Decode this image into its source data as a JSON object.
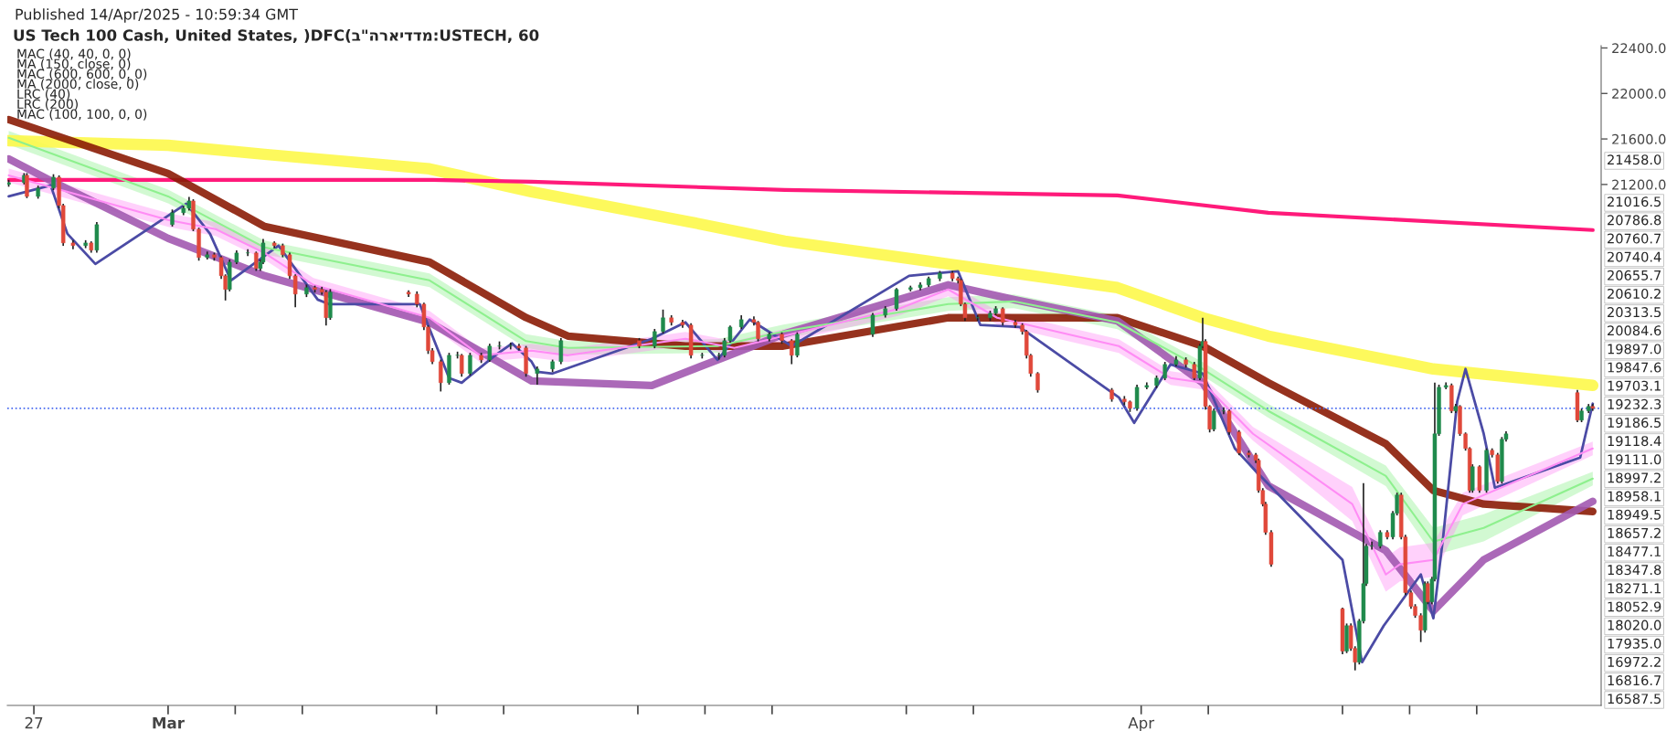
{
  "chart_data": {
    "type": "candlestick",
    "title": "US Tech 100 Cash, United States, )DFC(ב\"הראידדמ:USTECH, 60",
    "annotations": [
      "Published 14/Apr/2025 - 10:59:34 GMT",
      "MAC (40, 40, 0, 0)",
      "MA (150, close, 0)",
      "MAC (600, 600, 0, 0)",
      "MA (2000, close, 0)",
      "LRC (40)",
      "LRC (200)",
      "MAC (100, 100, 0, 0)",
      "21458.0",
      "21016.5",
      "20786.8",
      "20760.7",
      "20740.4",
      "20655.7",
      "20610.2",
      "20313.5",
      "20084.6",
      "19897.0",
      "19847.6",
      "19703.1",
      "19232.3",
      "19186.5",
      "19118.4",
      "19111.0",
      "18997.2",
      "18958.1",
      "18949.5",
      "18657.2",
      "18477.1",
      "18347.8",
      "18271.1",
      "18052.9",
      "18020.0",
      "17935.0",
      "16972.2",
      "16816.7",
      "16587.5"
    ],
    "x": [
      "2025-02-26T06:00",
      "2025-02-26T17:00",
      "2025-02-26T19:00",
      "2025-02-27T03:00",
      "2025-02-27T14:00",
      "2025-02-27T18:00",
      "2025-02-27T21:00",
      "2025-02-28T04:00",
      "2025-02-28T13:00",
      "2025-02-28T17:00",
      "2025-02-28T21:00",
      "2025-03-03T03:00",
      "2025-03-03T11:00",
      "2025-03-03T15:00",
      "2025-03-03T18:00",
      "2025-03-03T22:00",
      "2025-03-04T04:00",
      "2025-03-04T09:00",
      "2025-03-04T14:00",
      "2025-03-04T17:00",
      "2025-03-04T20:00",
      "2025-03-05T01:00",
      "2025-03-05T09:00",
      "2025-03-05T15:00",
      "2025-03-05T18:00",
      "2025-03-05T20:00",
      "2025-03-06T04:00",
      "2025-03-06T10:00",
      "2025-03-06T15:00",
      "2025-03-06T19:00",
      "2025-03-07T03:00",
      "2025-03-07T09:00",
      "2025-03-07T14:00",
      "2025-03-07T17:00",
      "2025-03-07T20:00",
      "2025-03-10T04:00",
      "2025-03-10T10:00",
      "2025-03-10T15:00",
      "2025-03-10T18:00",
      "2025-03-10T21:00",
      "2025-03-11T03:00",
      "2025-03-11T09:00",
      "2025-03-11T15:00",
      "2025-03-11T18:00",
      "2025-03-12T00:00",
      "2025-03-12T08:00",
      "2025-03-12T14:00",
      "2025-03-12T21:00",
      "2025-03-13T05:00",
      "2025-03-13T11:00",
      "2025-03-13T16:00",
      "2025-03-14T00:00",
      "2025-03-14T11:00",
      "2025-03-14T17:00",
      "2025-03-17T01:00",
      "2025-03-17T12:00",
      "2025-03-17T18:00",
      "2025-03-18T00:00",
      "2025-03-18T08:00",
      "2025-03-18T14:00",
      "2025-03-18T22:00",
      "2025-03-19T10:00",
      "2025-03-19T14:00",
      "2025-03-19T18:00",
      "2025-03-20T02:00",
      "2025-03-20T11:00",
      "2025-03-20T14:00",
      "2025-03-20T22:00",
      "2025-03-21T07:00",
      "2025-03-21T14:00",
      "2025-03-21T18:00",
      "2025-03-24T00:00",
      "2025-03-24T09:00",
      "2025-03-24T17:00",
      "2025-03-25T03:00",
      "2025-03-25T10:00",
      "2025-03-25T16:00",
      "2025-03-26T00:00",
      "2025-03-26T09:00",
      "2025-03-26T13:00",
      "2025-03-26T15:00",
      "2025-03-26T18:00",
      "2025-03-27T03:00",
      "2025-03-27T12:00",
      "2025-03-27T16:00",
      "2025-03-27T21:00",
      "2025-03-28T06:00",
      "2025-03-28T11:00",
      "2025-03-28T14:00",
      "2025-03-28T17:00",
      "2025-03-28T22:00",
      "2025-03-31T03:00",
      "2025-03-31T12:00",
      "2025-03-31T16:00",
      "2025-03-31T21:00",
      "2025-04-01T04:00",
      "2025-04-01T11:00",
      "2025-04-01T17:00",
      "2025-04-02T01:00",
      "2025-04-02T08:00",
      "2025-04-02T14:00",
      "2025-04-02T18:00",
      "2025-04-02T20:00",
      "2025-04-02T22:00",
      "2025-04-03T01:00",
      "2025-04-03T04:00",
      "2025-04-03T11:00",
      "2025-04-03T15:00",
      "2025-04-03T22:00",
      "2025-04-04T05:00",
      "2025-04-04T10:00",
      "2025-04-04T12:00",
      "2025-04-04T15:00",
      "2025-04-04T17:00",
      "2025-04-04T21:00",
      "2025-04-07T00:00",
      "2025-04-07T03:00",
      "2025-04-07T06:00",
      "2025-04-07T09:00",
      "2025-04-07T12:00",
      "2025-04-07T15:00",
      "2025-04-07T17:00",
      "2025-04-07T21:00",
      "2025-04-08T03:00",
      "2025-04-08T08:00",
      "2025-04-08T12:00",
      "2025-04-08T15:00",
      "2025-04-08T18:00",
      "2025-04-08T21:00",
      "2025-04-09T01:00",
      "2025-04-09T04:00",
      "2025-04-09T08:00",
      "2025-04-09T11:00",
      "2025-04-09T13:00",
      "2025-04-09T16:00",
      "2025-04-09T18:00",
      "2025-04-09T21:00",
      "2025-04-10T02:00",
      "2025-04-10T06:00",
      "2025-04-10T09:00",
      "2025-04-10T12:00",
      "2025-04-10T16:00",
      "2025-04-10T19:00",
      "2025-04-10T21:00",
      "2025-04-11T02:00",
      "2025-04-11T07:00",
      "2025-04-11T11:00",
      "2025-04-11T15:00",
      "2025-04-11T18:00",
      "2025-04-11T21:00",
      "2025-04-14T00:00",
      "2025-04-14T03:00",
      "2025-04-14T08:00",
      "2025-04-14T11:00"
    ],
    "ohlc": [
      [
        21200,
        21240,
        21180,
        21216
      ],
      [
        21216,
        21300,
        21200,
        21280
      ],
      [
        21280,
        21300,
        21080,
        21095
      ],
      [
        21095,
        21190,
        21075,
        21168
      ],
      [
        21168,
        21290,
        21150,
        21264
      ],
      [
        21264,
        21280,
        20990,
        21015
      ],
      [
        21015,
        21030,
        20660,
        20686
      ],
      [
        20686,
        20710,
        20630,
        20662
      ],
      [
        20662,
        20710,
        20640,
        20686
      ],
      [
        20686,
        20700,
        20600,
        20622
      ],
      [
        20622,
        20870,
        20600,
        20847
      ],
      [
        20847,
        20980,
        20830,
        20951
      ],
      [
        20951,
        21010,
        20930,
        20991
      ],
      [
        20991,
        21090,
        20970,
        21055
      ],
      [
        21055,
        21070,
        20790,
        20807
      ],
      [
        20807,
        20820,
        20530,
        20558
      ],
      [
        20558,
        20610,
        20540,
        20582
      ],
      [
        20582,
        20600,
        20530,
        20558
      ],
      [
        20558,
        20570,
        20370,
        20397
      ],
      [
        20397,
        20410,
        20180,
        20277
      ],
      [
        20277,
        20540,
        20260,
        20517
      ],
      [
        20517,
        20620,
        20500,
        20598
      ],
      [
        20598,
        20630,
        20570,
        20598
      ],
      [
        20598,
        20610,
        20440,
        20461
      ],
      [
        20461,
        20540,
        20440,
        20517
      ],
      [
        20517,
        20720,
        20500,
        20686
      ],
      [
        20686,
        20700,
        20640,
        20662
      ],
      [
        20662,
        20680,
        20560,
        20582
      ],
      [
        20582,
        20600,
        20370,
        20397
      ],
      [
        20397,
        20410,
        20120,
        20236
      ],
      [
        20236,
        20320,
        20210,
        20293
      ],
      [
        20293,
        20310,
        20250,
        20277
      ],
      [
        20277,
        20300,
        20230,
        20253
      ],
      [
        20253,
        20270,
        19960,
        20028
      ],
      [
        20028,
        20280,
        20010,
        20253
      ],
      [
        20253,
        20270,
        20210,
        20236
      ],
      [
        20236,
        20260,
        20120,
        20148
      ],
      [
        20148,
        20160,
        19920,
        19947
      ],
      [
        19947,
        19960,
        19710,
        19739
      ],
      [
        19739,
        19760,
        19620,
        19642
      ],
      [
        19642,
        19660,
        19380,
        19457
      ],
      [
        19457,
        19720,
        19440,
        19698
      ],
      [
        19698,
        19730,
        19670,
        19698
      ],
      [
        19698,
        19710,
        19510,
        19538
      ],
      [
        19538,
        19720,
        19520,
        19698
      ],
      [
        19698,
        19720,
        19630,
        19658
      ],
      [
        19658,
        19800,
        19640,
        19779
      ],
      [
        19779,
        19820,
        19750,
        19779
      ],
      [
        19779,
        19810,
        19750,
        19779
      ],
      [
        19779,
        19800,
        19740,
        19763
      ],
      [
        19763,
        19780,
        19510,
        19538
      ],
      [
        19538,
        19600,
        19440,
        19578
      ],
      [
        19578,
        19660,
        19550,
        19642
      ],
      [
        19642,
        19850,
        19620,
        19827
      ],
      [
        19827,
        19850,
        19760,
        19779
      ],
      [
        19779,
        19930,
        19760,
        19907
      ],
      [
        19907,
        20100,
        19890,
        20028
      ],
      [
        20028,
        20050,
        19960,
        19988
      ],
      [
        19988,
        20010,
        19940,
        19964
      ],
      [
        19964,
        19980,
        19670,
        19698
      ],
      [
        19698,
        19720,
        19670,
        19698
      ],
      [
        19698,
        19720,
        19660,
        19698
      ],
      [
        19698,
        19850,
        19680,
        19827
      ],
      [
        19827,
        19960,
        19810,
        19947
      ],
      [
        19947,
        20050,
        19930,
        20012
      ],
      [
        20012,
        20040,
        19960,
        19988
      ],
      [
        19988,
        20000,
        19820,
        19843
      ],
      [
        19843,
        19900,
        19820,
        19883
      ],
      [
        19883,
        19900,
        19800,
        19827
      ],
      [
        19827,
        19840,
        19620,
        19698
      ],
      [
        19698,
        19900,
        19680,
        19883
      ],
      [
        19883,
        20070,
        19860,
        20052
      ],
      [
        20052,
        20130,
        20030,
        20108
      ],
      [
        20108,
        20290,
        20090,
        20277
      ],
      [
        20277,
        20310,
        20260,
        20293
      ],
      [
        20293,
        20340,
        20270,
        20317
      ],
      [
        20317,
        20390,
        20300,
        20373
      ],
      [
        20373,
        20440,
        20350,
        20421
      ],
      [
        20421,
        20440,
        20350,
        20373
      ],
      [
        20373,
        20390,
        20330,
        20357
      ],
      [
        20357,
        20370,
        20130,
        20148
      ],
      [
        20148,
        20160,
        20000,
        20028
      ],
      [
        20028,
        20050,
        20000,
        20028
      ],
      [
        20028,
        20090,
        20000,
        20068
      ],
      [
        20068,
        20130,
        20050,
        20108
      ],
      [
        20108,
        20120,
        19960,
        19988
      ],
      [
        19988,
        20010,
        19940,
        19964
      ],
      [
        19964,
        19980,
        19880,
        19907
      ],
      [
        19907,
        19920,
        19670,
        19698
      ],
      [
        19698,
        19710,
        19510,
        19538
      ],
      [
        19538,
        19550,
        19370,
        19393
      ],
      [
        19393,
        19410,
        19290,
        19313
      ],
      [
        19313,
        19340,
        19260,
        19289
      ],
      [
        19289,
        19300,
        19200,
        19232
      ],
      [
        19232,
        19440,
        19210,
        19417
      ],
      [
        19417,
        19460,
        19400,
        19433
      ],
      [
        19433,
        19520,
        19410,
        19498
      ],
      [
        19498,
        19640,
        19480,
        19618
      ],
      [
        19618,
        19690,
        19600,
        19658
      ],
      [
        19658,
        19680,
        19590,
        19618
      ],
      [
        19618,
        19640,
        19480,
        19498
      ],
      [
        19498,
        19800,
        19480,
        19779
      ],
      [
        19779,
        20028,
        19760,
        19820
      ],
      [
        19820,
        19840,
        19220,
        19249
      ],
      [
        19249,
        19260,
        19020,
        19048
      ],
      [
        19048,
        19230,
        19030,
        19209
      ],
      [
        19209,
        19240,
        19180,
        19209
      ],
      [
        19209,
        19220,
        19000,
        19024
      ],
      [
        19024,
        19040,
        18820,
        18839
      ],
      [
        18839,
        18860,
        18800,
        18823
      ],
      [
        18823,
        18840,
        18750,
        18775
      ],
      [
        18775,
        18790,
        18490,
        18510
      ],
      [
        18510,
        18530,
        18370,
        18390
      ],
      [
        18390,
        18410,
        18120,
        18141
      ],
      [
        18141,
        18160,
        17840,
        17860
      ],
      [
        17470,
        17480,
        17070,
        17097
      ],
      [
        17097,
        17340,
        17080,
        17321
      ],
      [
        17321,
        17340,
        17100,
        17121
      ],
      [
        17121,
        17140,
        16928,
        17000
      ],
      [
        17000,
        17380,
        16980,
        17362
      ],
      [
        17362,
        18574,
        17340,
        17691
      ],
      [
        17691,
        18040,
        17670,
        18020
      ],
      [
        18020,
        18060,
        17990,
        18020
      ],
      [
        18020,
        18160,
        18000,
        18141
      ],
      [
        18141,
        18160,
        18080,
        18101
      ],
      [
        18101,
        18330,
        18080,
        18309
      ],
      [
        18309,
        18490,
        18290,
        18470
      ],
      [
        18470,
        18490,
        18080,
        18101
      ],
      [
        18101,
        18120,
        17590,
        17611
      ],
      [
        17611,
        17630,
        17470,
        17490
      ],
      [
        17490,
        17510,
        17390,
        17410
      ],
      [
        17410,
        17430,
        17177,
        17281
      ],
      [
        17281,
        17710,
        17260,
        17691
      ],
      [
        17691,
        17710,
        17510,
        17530
      ],
      [
        17530,
        17750,
        17510,
        17731
      ],
      [
        17731,
        19457,
        17710,
        19008
      ],
      [
        19008,
        19440,
        18990,
        19417
      ],
      [
        19417,
        19460,
        19400,
        19433
      ],
      [
        19433,
        19450,
        19190,
        19209
      ],
      [
        19209,
        19270,
        19190,
        19249
      ],
      [
        19249,
        19260,
        18990,
        19008
      ],
      [
        19008,
        19020,
        18860,
        18879
      ],
      [
        18879,
        18890,
        18490,
        18510
      ],
      [
        18510,
        18740,
        18490,
        18719
      ],
      [
        18719,
        18730,
        18490,
        18510
      ],
      [
        18510,
        18880,
        18490,
        18863
      ],
      [
        18863,
        18880,
        18800,
        18823
      ],
      [
        18823,
        18840,
        18570,
        18590
      ],
      [
        18590,
        18980,
        18570,
        18960
      ],
      [
        18960,
        19030,
        18940,
        19008
      ],
      [
        19370,
        19393,
        19110,
        19128
      ],
      [
        19128,
        19230,
        19110,
        19209
      ],
      [
        19209,
        19270,
        19190,
        19249
      ],
      [
        19249,
        19270,
        19210,
        19232
      ]
    ],
    "series": [
      {
        "type": "line",
        "color": "#fdf84a",
        "x": [
          "2025-02-26T06:00",
          "2025-03-03T00:00",
          "2025-03-05T21:00",
          "2025-03-10T19:00",
          "2025-03-13T20:00",
          "2025-03-18T13:00",
          "2025-03-21T09:00",
          "2025-03-26T06:00",
          "2025-03-31T07:00",
          "2025-04-02T20:00",
          "2025-04-04T19:00",
          "2025-04-09T17:00",
          "2025-04-14T11:00"
        ],
        "values": [
          21585,
          21545,
          21465,
          21337,
          21136,
          20871,
          20702,
          20501,
          20293,
          20028,
          19867,
          19578,
          19433
        ]
      },
      {
        "type": "line",
        "color": "#ff1a7a",
        "x": [
          "2025-02-26T06:00",
          "2025-03-10T21:00",
          "2025-03-13T20:00",
          "2025-03-21T09:00",
          "2025-03-31T07:00",
          "2025-04-04T19:00",
          "2025-04-14T11:00"
        ],
        "values": [
          21240,
          21240,
          21224,
          21152,
          21104,
          20951,
          20799
        ]
      },
      {
        "type": "line",
        "color": "#8ef08e",
        "x": [
          "2025-02-26T06:00",
          "2025-03-03T00:00",
          "2025-03-05T21:00",
          "2025-03-10T19:00",
          "2025-03-13T16:00",
          "2025-03-14T22:00",
          "2025-03-19T09:00",
          "2025-03-21T08:00",
          "2025-03-26T06:00",
          "2025-03-28T05:00",
          "2025-03-31T07:00",
          "2025-04-02T20:00",
          "2025-04-04T19:00",
          "2025-04-08T07:00",
          "2025-04-09T17:00",
          "2025-04-11T05:00",
          "2025-04-14T11:00"
        ],
        "values": [
          21610,
          21095,
          20646,
          20357,
          19823,
          19763,
          19779,
          19907,
          20148,
          20172,
          19988,
          19578,
          19209,
          18638,
          18060,
          18181,
          18614
        ],
        "lower": [
          21550,
          21035,
          20586,
          20297,
          19763,
          19703,
          19719,
          19847,
          20088,
          20112,
          19928,
          19518,
          19149,
          18548,
          17940,
          18061,
          18554
        ],
        "upper": [
          21670,
          21155,
          20706,
          20417,
          19883,
          19823,
          19839,
          19967,
          20208,
          20232,
          20048,
          19638,
          19269,
          18728,
          18180,
          18301,
          18674
        ]
      },
      {
        "type": "line",
        "color": "#ff8cf5",
        "x": [
          "2025-02-26T06:00",
          "2025-02-27T12:00",
          "2025-03-03T00:00",
          "2025-03-04T10:00",
          "2025-03-05T21:00",
          "2025-03-07T08:00",
          "2025-03-10T19:00",
          "2025-03-12T07:00",
          "2025-03-13T20:00",
          "2025-03-14T22:00",
          "2025-03-18T10:00",
          "2025-03-19T21:00",
          "2025-03-21T08:00",
          "2025-03-24T19:00",
          "2025-03-26T06:00",
          "2025-03-27T17:00",
          "2025-03-31T08:00",
          "2025-04-01T21:00",
          "2025-04-02T20:00",
          "2025-04-04T08:00",
          "2025-04-07T07:00",
          "2025-04-08T07:00",
          "2025-04-08T17:00",
          "2025-04-09T17:00",
          "2025-04-10T14:00",
          "2025-04-14T11:00"
        ],
        "values": [
          21280,
          21176,
          20887,
          20807,
          20598,
          20317,
          20028,
          19698,
          19739,
          19698,
          19843,
          19763,
          19867,
          20108,
          20277,
          20028,
          19779,
          19498,
          19457,
          19008,
          18390,
          17771,
          17860,
          17900,
          18390,
          18879
        ],
        "lower": [
          21220,
          21116,
          20827,
          20747,
          20538,
          20257,
          19968,
          19638,
          19679,
          19638,
          19783,
          19703,
          19807,
          20048,
          20217,
          19968,
          19719,
          19438,
          19397,
          18948,
          18240,
          17621,
          17710,
          17750,
          18290,
          18819
        ],
        "upper": [
          21340,
          21236,
          20947,
          20867,
          20658,
          20377,
          20088,
          19758,
          19799,
          19758,
          19903,
          19823,
          19927,
          20168,
          20337,
          20088,
          19839,
          19558,
          19517,
          19068,
          18540,
          17921,
          18010,
          18050,
          18490,
          18939
        ]
      },
      {
        "type": "line",
        "color": "#8b1c06",
        "x": [
          "2025-02-26T06:00",
          "2025-03-03T00:00",
          "2025-03-05T21:00",
          "2025-03-10T19:00",
          "2025-03-13T16:00",
          "2025-03-14T22:00",
          "2025-03-18T10:00",
          "2025-03-21T08:00",
          "2025-03-26T06:00",
          "2025-03-31T07:00",
          "2025-04-02T20:00",
          "2025-04-04T19:00",
          "2025-04-08T07:00",
          "2025-04-09T17:00",
          "2025-04-11T05:00",
          "2025-04-14T11:00"
        ],
        "values": [
          21770,
          21296,
          20831,
          20517,
          20030,
          19867,
          19779,
          19779,
          20028,
          20028,
          19779,
          19457,
          18920,
          18510,
          18390,
          18325
        ]
      },
      {
        "type": "line",
        "color": "#a259b0",
        "x": [
          "2025-02-26T06:00",
          "2025-02-27T11:00",
          "2025-03-03T00:00",
          "2025-03-05T21:00",
          "2025-03-10T19:00",
          "2025-03-13T20:00",
          "2025-03-17T10:00",
          "2025-03-19T09:00",
          "2025-03-21T08:00",
          "2025-03-26T06:00",
          "2025-03-28T05:00",
          "2025-03-31T07:00",
          "2025-04-02T20:00",
          "2025-04-04T19:00",
          "2025-04-08T07:00",
          "2025-04-09T17:00",
          "2025-04-11T05:00",
          "2025-04-14T11:00"
        ],
        "values": [
          21425,
          21240,
          20726,
          20397,
          19988,
          19473,
          19433,
          19658,
          19883,
          20317,
          20188,
          20000,
          19457,
          18550,
          17980,
          17450,
          17900,
          18414
        ]
      },
      {
        "type": "line",
        "color": "#4b4ba5",
        "x": [
          "2025-02-26T06:00",
          "2025-02-27T12:00",
          "2025-02-28T00:00",
          "2025-02-28T20:00",
          "2025-03-03T13:00",
          "2025-03-04T06:00",
          "2025-03-04T21:00",
          "2025-03-06T07:00",
          "2025-03-07T11:00",
          "2025-03-07T19:00",
          "2025-03-10T12:00",
          "2025-03-11T09:00",
          "2025-03-11T18:00",
          "2025-03-12T18:00",
          "2025-03-13T06:00",
          "2025-03-13T20:00",
          "2025-03-14T00:00",
          "2025-03-14T11:00",
          "2025-03-17T10:00",
          "2025-03-18T10:00",
          "2025-03-19T09:00",
          "2025-03-20T08:00",
          "2025-03-21T14:00",
          "2025-03-25T02:00",
          "2025-03-26T13:00",
          "2025-03-27T05:00",
          "2025-03-28T09:00",
          "2025-03-31T08:00",
          "2025-03-31T19:00",
          "2025-04-01T21:00",
          "2025-04-02T20:00",
          "2025-04-03T19:00",
          "2025-04-04T10:00",
          "2025-04-07T00:00",
          "2025-04-07T14:00",
          "2025-04-08T05:30",
          "2025-04-09T08:00",
          "2025-04-09T17:00",
          "2025-04-10T00:00",
          "2025-04-10T10:00",
          "2025-04-10T16:00",
          "2025-04-11T05:00",
          "2025-04-11T13:00",
          "2025-04-14T02:00",
          "2025-04-14T11:00"
        ],
        "values": [
          21095,
          21192,
          20766,
          20501,
          21031,
          20766,
          20357,
          20662,
          20188,
          20148,
          20148,
          19498,
          19457,
          19698,
          19803,
          19642,
          19554,
          19538,
          19843,
          19988,
          19658,
          20012,
          19779,
          20397,
          20437,
          19964,
          19947,
          19329,
          19104,
          19618,
          19538,
          18879,
          18679,
          17900,
          17000,
          17321,
          17771,
          17386,
          18101,
          19289,
          19578,
          19008,
          18534,
          18799,
          19273
        ]
      }
    ],
    "ref_lines": [
      {
        "axis": "y",
        "value": 19232.3,
        "color": "#4a6cf0",
        "line_style": "dotted"
      }
    ],
    "xlim": [
      "2025-02-26T05:00",
      "2025-04-14T17:00"
    ],
    "xticks": [
      {
        "value": "2025-02-27",
        "label": "27"
      },
      {
        "value": "2025-03-03",
        "label": "Mar"
      },
      {
        "value": "2025-03-05",
        "label": null
      },
      {
        "value": "2025-03-07",
        "label": null
      },
      {
        "value": "2025-03-11",
        "label": null
      },
      {
        "value": "2025-03-13",
        "label": null
      },
      {
        "value": "2025-03-17",
        "label": null
      },
      {
        "value": "2025-03-19",
        "label": null
      },
      {
        "value": "2025-03-21",
        "label": null
      },
      {
        "value": "2025-03-25",
        "label": null
      },
      {
        "value": "2025-03-27",
        "label": null
      },
      {
        "value": "2025-04-01",
        "label": "Apr"
      },
      {
        "value": "2025-04-03",
        "label": null
      },
      {
        "value": "2025-04-07",
        "label": null
      },
      {
        "value": "2025-04-09",
        "label": null
      },
      {
        "value": "2025-04-11",
        "label": null
      }
    ],
    "ylim": [
      16620,
      22420
    ],
    "yticks": [
      {
        "value": 22400,
        "label": "22400.0"
      },
      {
        "value": 22000,
        "label": "22000.0"
      },
      {
        "value": 21600,
        "label": "21600.0"
      },
      {
        "value": 21200,
        "label": "21200.0"
      }
    ],
    "grid": false,
    "legend": false
  }
}
